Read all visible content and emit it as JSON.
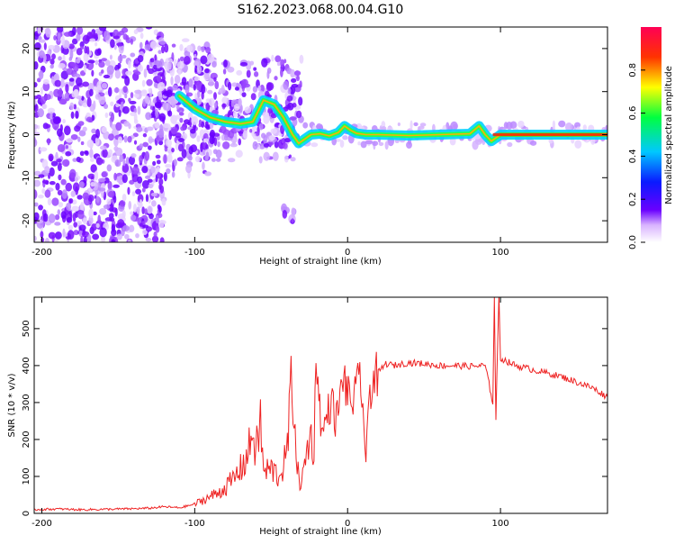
{
  "figure": {
    "title": "S162.2023.068.00.04.G10"
  },
  "chart_data": [
    {
      "type": "heatmap",
      "title": "S162.2023.068.00.04.G10",
      "xlabel": "Height of straight line (km)",
      "ylabel": "Frequency (Hz)",
      "xlim": [
        -205,
        170
      ],
      "ylim": [
        -25,
        25
      ],
      "x_ticks": [
        -200,
        -100,
        0,
        100
      ],
      "y_ticks": [
        -20,
        -10,
        0,
        10,
        20
      ],
      "grid": false,
      "colorbar": {
        "label": "Normalized spectral amplitude",
        "range": [
          0.0,
          1.0
        ],
        "ticks": [
          0.0,
          0.2,
          0.4,
          0.6,
          0.8
        ],
        "colormap": [
          "#ffffff",
          "#6a00ff",
          "#0a1aff",
          "#00c8ff",
          "#00ff40",
          "#ffff00",
          "#ff3300",
          "#ff0055"
        ]
      },
      "trace_line": {
        "name": "dominant frequency",
        "x": [
          -110,
          -100,
          -90,
          -80,
          -70,
          -62,
          -55,
          -48,
          -42,
          -36,
          -32,
          -28,
          -24,
          -18,
          -12,
          -6,
          -2,
          2,
          6,
          12,
          20,
          40,
          60,
          80,
          86,
          90,
          94,
          100,
          120,
          140,
          160,
          170
        ],
        "y": [
          9,
          6,
          4,
          3,
          2.5,
          3,
          8,
          7,
          4,
          0,
          -2,
          -1,
          0,
          0.2,
          -0.3,
          0.5,
          2,
          1,
          0.3,
          0,
          0,
          -0.2,
          0,
          0.2,
          2,
          0,
          -1.5,
          0,
          0,
          0,
          0,
          0
        ]
      },
      "scatter_density": {
        "region_a": {
          "x_range": [
            -205,
            -120
          ],
          "y_range": [
            -25,
            25
          ],
          "amplitude": 0.1
        },
        "region_b": {
          "x_range": [
            -120,
            -30
          ],
          "y_range": [
            -6,
            18
          ],
          "amplitude": 0.15
        },
        "isolated_blob": {
          "x": -38,
          "y": -19,
          "amplitude": 0.15
        }
      }
    },
    {
      "type": "line",
      "xlabel": "Height of straight line (km)",
      "ylabel": "SNR (10 * v/v)",
      "xlim": [
        -205,
        170
      ],
      "ylim": [
        0,
        585
      ],
      "x_ticks": [
        -200,
        -100,
        0,
        100
      ],
      "y_ticks": [
        0,
        100,
        200,
        300,
        400,
        500
      ],
      "grid": false,
      "color": "#ee2222",
      "x": [
        -205,
        -190,
        -175,
        -160,
        -145,
        -130,
        -120,
        -110,
        -100,
        -95,
        -90,
        -85,
        -80,
        -75,
        -70,
        -65,
        -62,
        -60,
        -57,
        -55,
        -50,
        -45,
        -40,
        -37,
        -35,
        -33,
        -30,
        -25,
        -22,
        -20,
        -17,
        -15,
        -12,
        -10,
        -8,
        -5,
        -3,
        0,
        3,
        6,
        8,
        10,
        12,
        14,
        17,
        20,
        25,
        30,
        40,
        50,
        60,
        70,
        80,
        90,
        95,
        96,
        97,
        99,
        100,
        110,
        120,
        130,
        140,
        150,
        160,
        170
      ],
      "y": [
        10,
        12,
        10,
        11,
        12,
        14,
        18,
        15,
        25,
        35,
        45,
        55,
        70,
        90,
        120,
        160,
        230,
        160,
        250,
        110,
        120,
        100,
        150,
        320,
        330,
        110,
        80,
        210,
        190,
        420,
        210,
        240,
        290,
        300,
        250,
        300,
        380,
        320,
        300,
        330,
        380,
        300,
        120,
        330,
        360,
        380,
        405,
        400,
        408,
        405,
        400,
        400,
        398,
        400,
        300,
        580,
        260,
        590,
        420,
        400,
        390,
        380,
        370,
        355,
        340,
        315
      ]
    }
  ]
}
